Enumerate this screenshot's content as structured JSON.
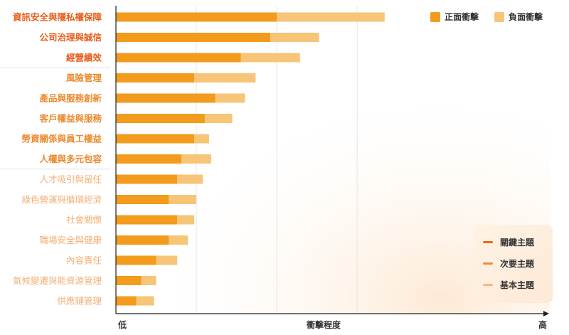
{
  "chart_data": {
    "type": "bar",
    "orientation": "horizontal",
    "stacked": true,
    "xlabel": "衝擊程度",
    "xtick_low": "低",
    "xtick_high": "高",
    "xlim": [
      0,
      100
    ],
    "categories": [
      "資訊安全與隱私權保障",
      "公司治理與誠信",
      "經營績效",
      "風險管理",
      "產品與服務創新",
      "客戶權益與服務",
      "勞資關係與員工權益",
      "人權與多元包容",
      "人才吸引與留任",
      "綠色營運與循環經濟",
      "社會關懷",
      "職場安全與健康",
      "內容責任",
      "氣候變遷與能資源管理",
      "供應鏈管理"
    ],
    "category_tier": [
      "key",
      "key",
      "key",
      "secondary",
      "secondary",
      "secondary",
      "secondary",
      "secondary",
      "basic",
      "basic",
      "basic",
      "basic",
      "basic",
      "basic",
      "basic"
    ],
    "series": [
      {
        "name": "正面衝擊",
        "values": [
          38,
          36.5,
          29.5,
          18.5,
          23.5,
          21,
          18.5,
          15.5,
          14.5,
          12.5,
          14.5,
          12.5,
          9.5,
          6,
          4.8
        ]
      },
      {
        "name": "負面衝擊",
        "values": [
          25.5,
          11.5,
          14,
          14.5,
          7,
          6.5,
          3.5,
          7,
          6,
          6.5,
          4,
          4.5,
          5,
          3.5,
          4.2
        ]
      }
    ],
    "grid": "vertical"
  },
  "legend_tiers": [
    {
      "label": "關鍵主題"
    },
    {
      "label": "次要主題"
    },
    {
      "label": "基本主題"
    }
  ],
  "colors": {
    "positive": "#f29b1d",
    "negative": "#f6c577",
    "key_text": "#e85e1b",
    "secondary_text": "#ec8a2e",
    "basic_text": "#f3ae74",
    "key_line": "#e8661c",
    "secondary_line": "#f08a3c",
    "basic_line": "#f6b98a"
  }
}
